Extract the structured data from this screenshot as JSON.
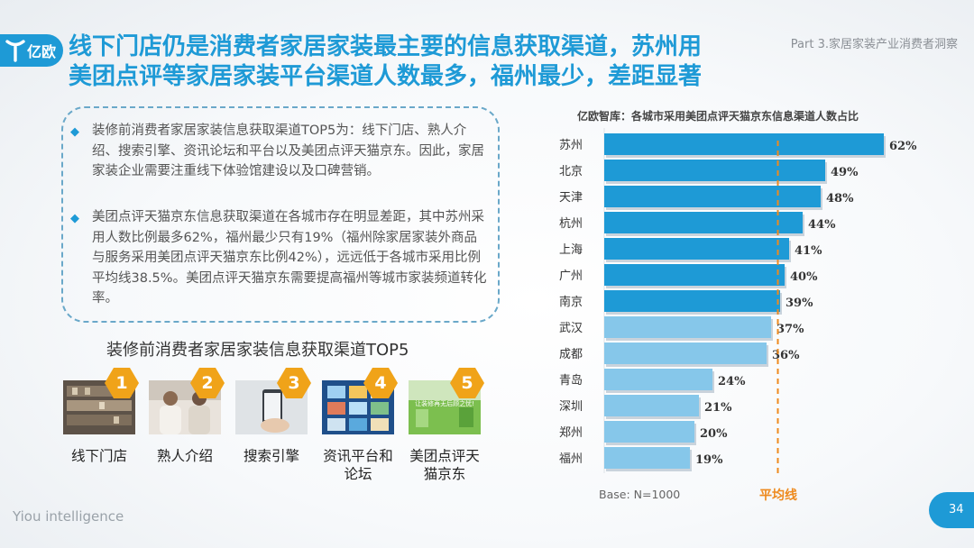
{
  "header": {
    "logo_text": "亿欧",
    "title_line1": "线下门店仍是消费者家居家装最主要的信息获取渠道，苏州用",
    "title_line2": "美团点评等家居家装平台渠道人数最多，福州最少，差距显著",
    "part": "Part 3.家居家装产业消费者洞察"
  },
  "summary": {
    "bullet1": "装修前消费者家居家装信息获取渠道TOP5为：线下门店、熟人介绍、搜索引擎、资讯论坛和平台以及美团点评天猫京东。因此，家居家装企业需要注重线下体验馆建设以及口碑营销。",
    "bullet2": "美团点评天猫京东信息获取渠道在各城市存在明显差距，其中苏州采用人数比例最多62%，福州最少只有19%（福州除家居家装外商品与服务采用美团点评天猫京东比例42%），远远低于各城市采用比例平均线38.5%。美团点评天猫京东需要提高福州等城市家装频道转化率。"
  },
  "channels": {
    "subtitle": "装修前消费者家居家装信息获取渠道TOP5",
    "items": [
      {
        "num": "1",
        "label": "线下门店"
      },
      {
        "num": "2",
        "label": "熟人介绍"
      },
      {
        "num": "3",
        "label": "搜索引擎"
      },
      {
        "num": "4",
        "label": "资讯平台和论坛"
      },
      {
        "num": "5",
        "label": "美团点评天猫京东"
      }
    ],
    "thumb5_text": "让装修再无后顾之忧!"
  },
  "chart_data": {
    "type": "bar",
    "orientation": "horizontal",
    "title": "亿欧智库：各城市采用美团点评天猫京东信息渠道人数占比",
    "categories": [
      "苏州",
      "北京",
      "天津",
      "杭州",
      "上海",
      "广州",
      "南京",
      "武汉",
      "成都",
      "青岛",
      "深圳",
      "郑州",
      "福州"
    ],
    "values": [
      62,
      49,
      48,
      44,
      41,
      40,
      39,
      37,
      36,
      24,
      21,
      20,
      19
    ],
    "value_labels": [
      "62%",
      "49%",
      "48%",
      "44%",
      "41%",
      "40%",
      "39%",
      "37%",
      "36%",
      "24%",
      "21%",
      "20%",
      "19%"
    ],
    "xlim": [
      0,
      66
    ],
    "average": 38.5,
    "average_label": "平均线",
    "colors": {
      "above_average": "#1e9ad6",
      "below_average": "#86c7ea",
      "average_line": "#ee8a1e"
    },
    "base_note": "Base: N=1000"
  },
  "footer": {
    "brand": "Yiou intelligence",
    "page": "34"
  }
}
